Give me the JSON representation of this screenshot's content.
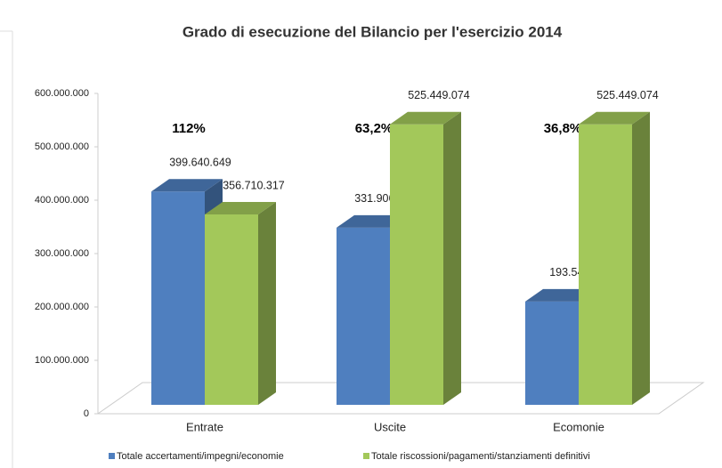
{
  "chart_data": {
    "type": "bar3d",
    "title": "Grado di esecuzione  del Bilancio per l'esercizio 2014",
    "categories": [
      "Entrate",
      "Uscite",
      "Ecomonie"
    ],
    "series": [
      {
        "name": "Totale accertamenti/impegni/economie",
        "color": "#4f7fbf",
        "values": [
          399640649,
          331906265,
          193542000
        ],
        "value_labels": [
          "399.640.649",
          "331.906.265",
          "193.542..."
        ]
      },
      {
        "name": "Totale riscossioni/pagamenti/stanziamenti   definitivi",
        "color": "#a3c85a",
        "values": [
          356710317,
          525449074,
          525449074
        ],
        "value_labels": [
          "356.710.317",
          "525.449.074",
          "525.449.074"
        ]
      }
    ],
    "annotations": [
      "112%",
      "63,2%",
      "36,8%"
    ],
    "ylim": [
      0,
      600000000
    ],
    "yticks": [
      0,
      {
        "value": 100000000,
        "label": "100.000.000"
      },
      {
        "value": 200000000,
        "label": "200.000.000"
      },
      {
        "value": 300000000,
        "label": "300.000.000"
      },
      {
        "value": 400000000,
        "label": "400.000.000"
      },
      {
        "value": 500000000,
        "label": "500.000.000"
      },
      {
        "value": 600000000,
        "label": "600.000.000"
      }
    ],
    "grid": false
  }
}
